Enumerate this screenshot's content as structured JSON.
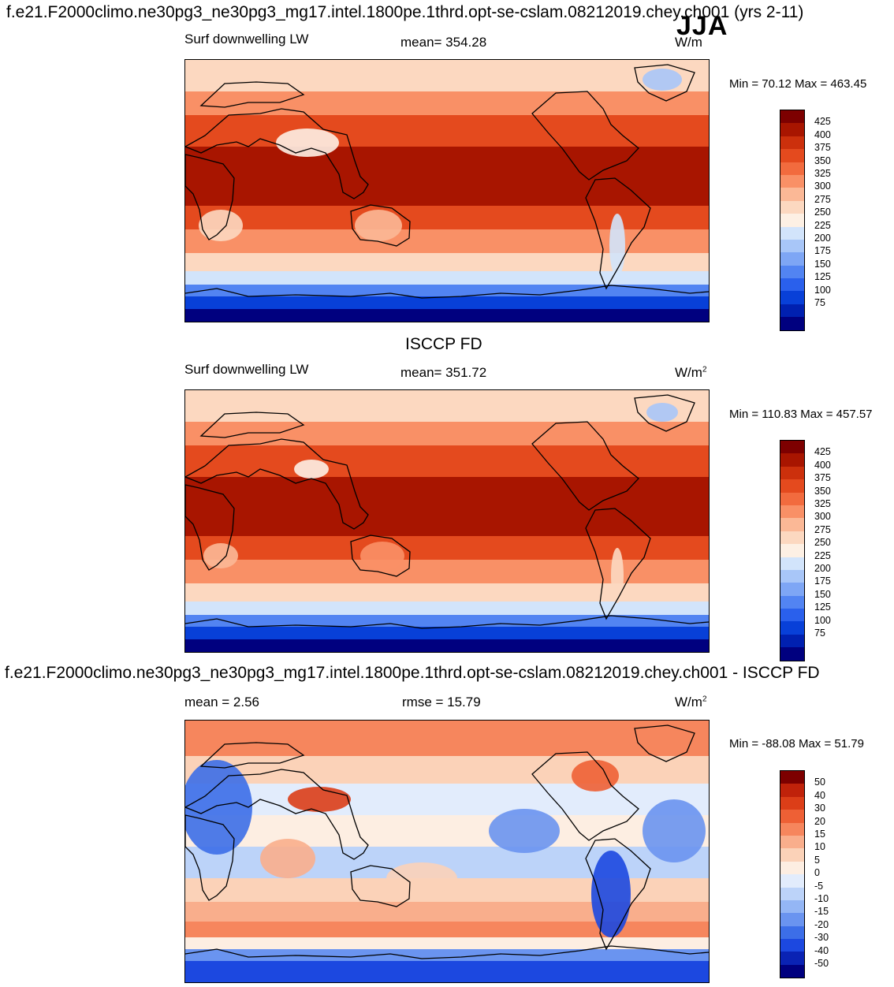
{
  "header": {
    "title": "f.e21.F2000climo.ne30pg3_ne30pg3_mg17.intel.1800pe.1thrd.opt-se-cslam.08212019.chey.ch001 (yrs 2-11)",
    "season": "JJA"
  },
  "colors": {
    "abs_scale": [
      "#00007f",
      "#0020b0",
      "#0840d8",
      "#2a60ec",
      "#5284f2",
      "#7ea6f5",
      "#a8c6f8",
      "#d2e4fb",
      "#fdf0e4",
      "#fcd8c0",
      "#fbb896",
      "#f99066",
      "#f26b3e",
      "#e44a1e",
      "#cc300c",
      "#a81500",
      "#7d0000"
    ],
    "diff_scale": [
      "#00007f",
      "#0a23b4",
      "#1c48e0",
      "#3c6ee8",
      "#6a94f0",
      "#94b6f5",
      "#bcd3f9",
      "#e2ecfc",
      "#fdeee2",
      "#fbd2b8",
      "#f9ae8c",
      "#f6865d",
      "#ee6035",
      "#dc3e18",
      "#c0220a",
      "#7d0000"
    ],
    "coast": "#000000"
  },
  "chart_data": [
    {
      "type": "heatmap",
      "panel": "model",
      "left_label": "Surf downwelling LW",
      "mean_text": "mean= 354.28",
      "units_text": "W/m",
      "units_sup": "",
      "minmax_text": "Min =  70.12 Max = 463.45",
      "levels": [
        "425",
        "400",
        "375",
        "350",
        "325",
        "300",
        "275",
        "250",
        "225",
        "200",
        "175",
        "150",
        "125",
        "100",
        "75"
      ],
      "min": 70.12,
      "max": 463.45,
      "mean": 354.28
    },
    {
      "type": "heatmap",
      "panel": "obs",
      "title": "ISCCP FD",
      "left_label": "Surf downwelling LW",
      "mean_text": "mean= 351.72",
      "units_text": "W/m",
      "units_sup": "2",
      "minmax_text": "Min = 110.83 Max = 457.57",
      "levels": [
        "425",
        "400",
        "375",
        "350",
        "325",
        "300",
        "275",
        "250",
        "225",
        "200",
        "175",
        "150",
        "125",
        "100",
        "75"
      ],
      "min": 110.83,
      "max": 457.57,
      "mean": 351.72
    },
    {
      "type": "heatmap",
      "panel": "difference",
      "title": "f.e21.F2000climo.ne30pg3_ne30pg3_mg17.intel.1800pe.1thrd.opt-se-cslam.08212019.chey.ch001 - ISCCP FD",
      "left_label": "mean =   2.56",
      "mean_text": "rmse =  15.79",
      "units_text": "W/m",
      "units_sup": "2",
      "minmax_text": "Min = -88.08 Max =  51.79",
      "levels": [
        "50",
        "40",
        "30",
        "20",
        "15",
        "10",
        "5",
        "0",
        "-5",
        "-10",
        "-15",
        "-20",
        "-30",
        "-40",
        "-50"
      ],
      "min": -88.08,
      "max": 51.79,
      "mean": 2.56,
      "rmse": 15.79
    }
  ]
}
